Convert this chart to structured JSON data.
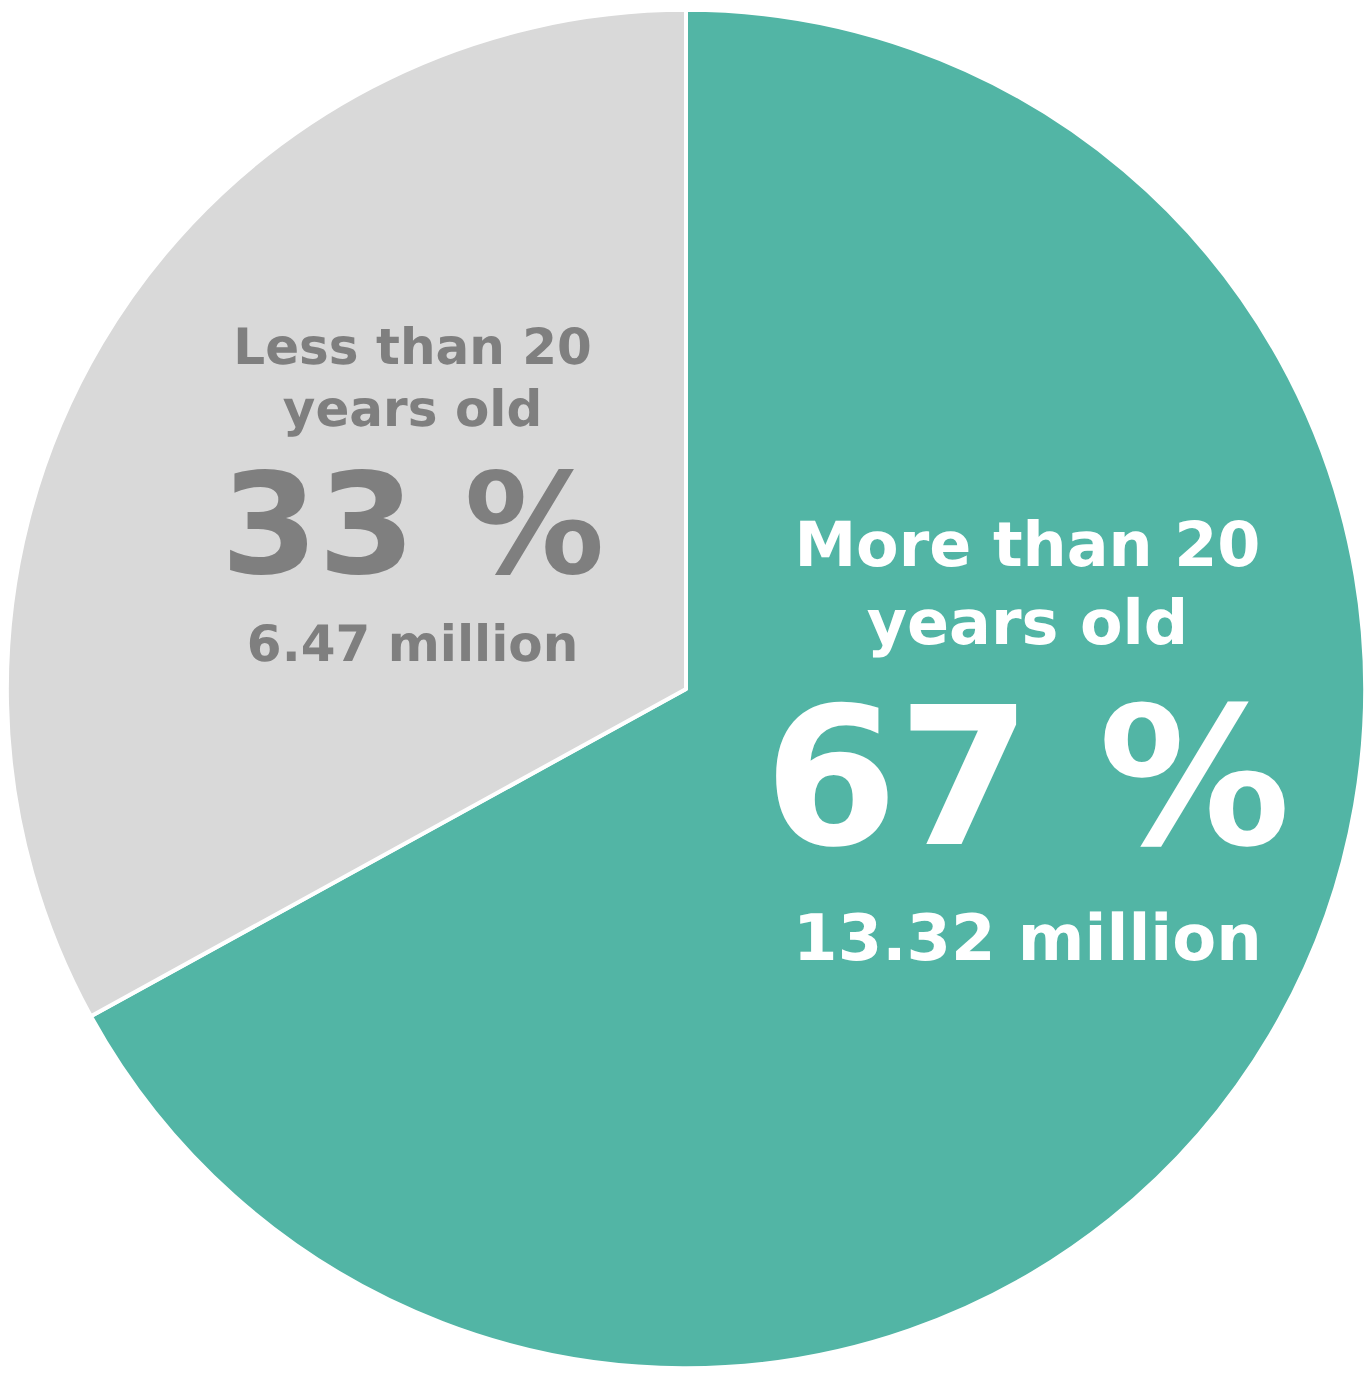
{
  "chart_data": {
    "type": "pie",
    "categories": [
      "More than 20 years old",
      "Less than 20 years old"
    ],
    "values": [
      67,
      33
    ],
    "colors": [
      "#52b5a5",
      "#d9d9d9"
    ],
    "value_labels": [
      "67 %",
      "33 %"
    ],
    "annotations": [
      "13.32 million",
      "6.47 million"
    ]
  }
}
